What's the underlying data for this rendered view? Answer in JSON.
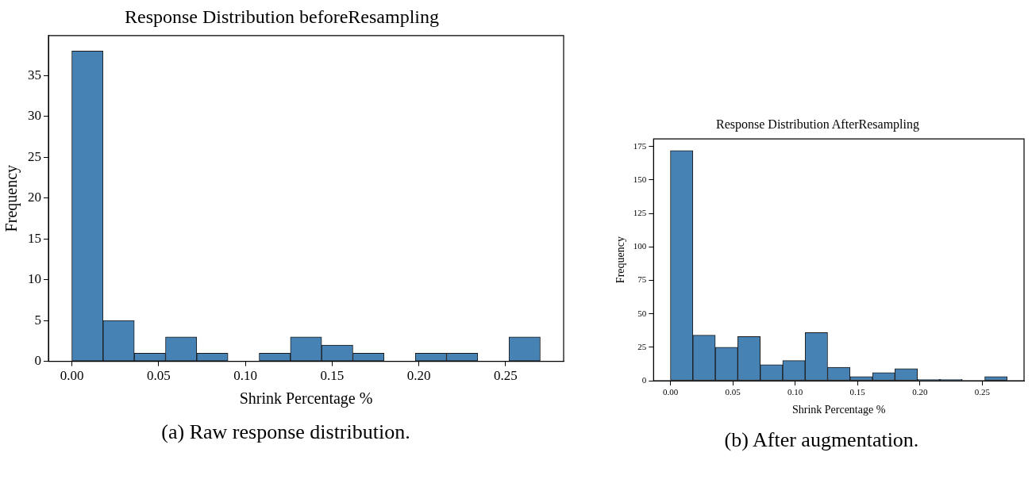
{
  "chart_data": [
    {
      "type": "histogram",
      "title": "Response Distribution beforeResampling",
      "xlabel": "Shrink Percentage %",
      "ylabel": "Frequency",
      "color": "#4682b4",
      "bins": [
        0,
        0.018,
        0.036,
        0.054,
        0.072,
        0.09,
        0.108,
        0.126,
        0.144,
        0.162,
        0.18,
        0.198,
        0.216,
        0.234,
        0.252,
        0.27
      ],
      "values": [
        38,
        5,
        1,
        3,
        1,
        0,
        1,
        3,
        2,
        1,
        0,
        1,
        1,
        0,
        3
      ],
      "xlim": [
        -0.0135,
        0.2835
      ],
      "ylim": [
        0,
        39.9
      ],
      "xticks": [
        {
          "value": 0,
          "label": "0.00"
        },
        {
          "value": 0.05,
          "label": "0.05"
        },
        {
          "value": 0.1,
          "label": "0.10"
        },
        {
          "value": 0.15,
          "label": "0.15"
        },
        {
          "value": 0.2,
          "label": "0.20"
        },
        {
          "value": 0.25,
          "label": "0.25"
        }
      ],
      "yticks": [
        0,
        5,
        10,
        15,
        20,
        25,
        30,
        35
      ],
      "annotations": [
        "(a) Raw response distribution."
      ]
    },
    {
      "type": "histogram",
      "title": "Response Distribution AfterResampling",
      "xlabel": "Shrink Percentage %",
      "ylabel": "Frequency",
      "color": "#4682b4",
      "bins": [
        0,
        0.018,
        0.036,
        0.054,
        0.072,
        0.09,
        0.108,
        0.126,
        0.144,
        0.162,
        0.18,
        0.198,
        0.216,
        0.234,
        0.252,
        0.27
      ],
      "values": [
        172,
        34,
        25,
        33,
        12,
        15,
        36,
        10,
        3,
        6,
        9,
        1,
        1,
        0,
        3
      ],
      "xlim": [
        -0.0135,
        0.2835
      ],
      "ylim": [
        0,
        180.6
      ],
      "xticks": [
        {
          "value": 0,
          "label": "0.00"
        },
        {
          "value": 0.05,
          "label": "0.05"
        },
        {
          "value": 0.1,
          "label": "0.10"
        },
        {
          "value": 0.15,
          "label": "0.15"
        },
        {
          "value": 0.2,
          "label": "0.20"
        },
        {
          "value": 0.25,
          "label": "0.25"
        }
      ],
      "yticks": [
        0,
        25,
        50,
        75,
        100,
        125,
        150,
        175
      ],
      "annotations": [
        "(b) After augmentation."
      ]
    }
  ]
}
